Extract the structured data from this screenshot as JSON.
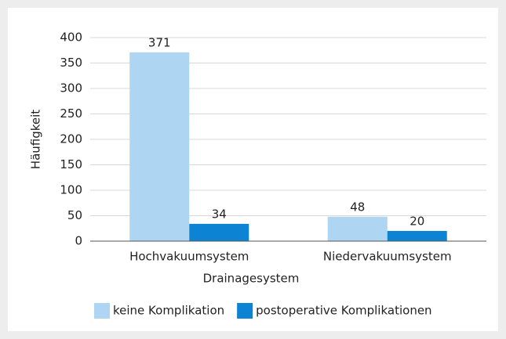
{
  "chart_data": {
    "type": "bar",
    "xlabel": "Drainagesystem",
    "ylabel": "Häufigkeit",
    "categories": [
      "Hochvakuumsystem",
      "Niedervakuumsystem"
    ],
    "series": [
      {
        "name": "keine Komplikation",
        "color": "#aed5f2",
        "values": [
          371,
          48
        ]
      },
      {
        "name": "postoperative Komplikationen",
        "color": "#0c83d3",
        "values": [
          34,
          20
        ]
      }
    ],
    "ylim": [
      0,
      400
    ],
    "yticks": [
      0,
      50,
      100,
      150,
      200,
      250,
      300,
      350,
      400
    ],
    "grid": true,
    "legend": "bottom"
  }
}
